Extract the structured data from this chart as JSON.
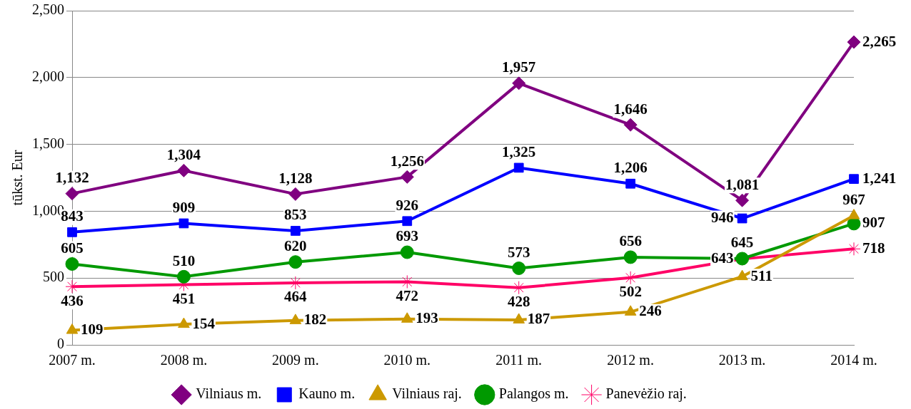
{
  "chart_data": {
    "type": "line",
    "ylabel": "tūkst. Eur",
    "categories": [
      "2007 m.",
      "2008 m.",
      "2009 m.",
      "2010 m.",
      "2011 m.",
      "2012 m.",
      "2013 m.",
      "2014 m."
    ],
    "series": [
      {
        "name": "Vilniaus m.",
        "color": "#800080",
        "marker": "diamond",
        "values": [
          1132,
          1304,
          1128,
          1256,
          1957,
          1646,
          1081,
          2265
        ],
        "value_labels": [
          "1,132",
          "1,304",
          "1,128",
          "1,256",
          "1,957",
          "1,646",
          "1,081",
          "2,265"
        ]
      },
      {
        "name": "Kauno m.",
        "color": "#0000ff",
        "marker": "square",
        "values": [
          843,
          909,
          853,
          926,
          1325,
          1206,
          946,
          1241
        ],
        "value_labels": [
          "843",
          "909",
          "853",
          "926",
          "1,325",
          "1,206",
          "946",
          "1,241"
        ]
      },
      {
        "name": "Vilniaus raj.",
        "color": "#cc9900",
        "marker": "triangle",
        "values": [
          109,
          154,
          182,
          193,
          187,
          246,
          511,
          967
        ]
      },
      {
        "name": "Palangos m.",
        "color": "#009900",
        "marker": "circle",
        "values": [
          605,
          510,
          620,
          693,
          573,
          656,
          645,
          907
        ]
      },
      {
        "name": "Panevėžio raj.",
        "color": "#ff0066",
        "marker": "cross",
        "values": [
          436,
          451,
          464,
          472,
          428,
          502,
          643,
          718
        ]
      }
    ],
    "ylim": [
      0,
      2500
    ],
    "yticks": [
      0,
      500,
      {
        "value": 1000,
        "label": "1,000"
      },
      {
        "value": 1500,
        "label": "1,500"
      },
      {
        "value": 2000,
        "label": "2,000"
      },
      {
        "value": 2500,
        "label": "2,500"
      }
    ],
    "grid": "y",
    "legend": "bottom",
    "data_labels": true,
    "line_style": "solid"
  }
}
